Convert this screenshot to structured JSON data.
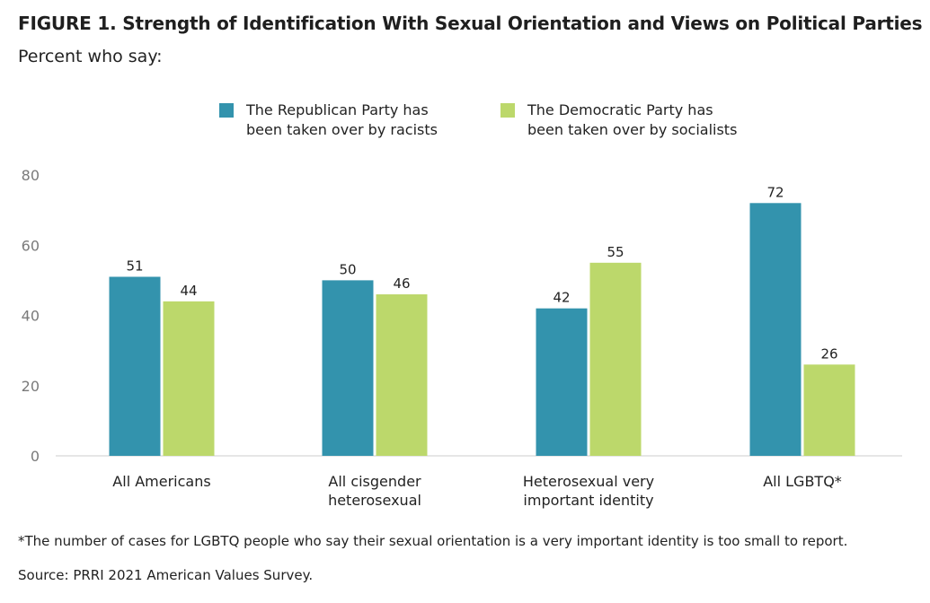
{
  "figure": {
    "title": "FIGURE 1.  Strength of Identification With Sexual Orientation and Views on Political Parties",
    "subtitle": "Percent who say:"
  },
  "chart_data": {
    "type": "bar",
    "categories": [
      [
        "All Americans"
      ],
      [
        "All cisgender",
        "heterosexual"
      ],
      [
        "Heterosexual very",
        "important identity"
      ],
      [
        "All LGBTQ*"
      ]
    ],
    "series": [
      {
        "name": "The Republican Party has been taken over by racists",
        "name_lines": [
          "The Republican Party has",
          "been taken over by racists"
        ],
        "color": "#3393ad",
        "values": [
          51,
          50,
          42,
          72
        ]
      },
      {
        "name": "The Democratic Party has been taken over by socialists",
        "name_lines": [
          "The Democratic Party has",
          "been taken over by socialists"
        ],
        "color": "#bcd86b",
        "values": [
          44,
          46,
          55,
          26
        ]
      }
    ],
    "ylim": [
      0,
      80
    ],
    "yticks": [
      0,
      20,
      40,
      60,
      80
    ],
    "xlabel": "",
    "ylabel": "",
    "legend": "top",
    "grid": false
  },
  "notes": {
    "footnote": "*The number of cases for LGBTQ people who say their sexual orientation is a very important identity is too small to report.",
    "source": "Source: PRRI 2021 American Values Survey."
  }
}
